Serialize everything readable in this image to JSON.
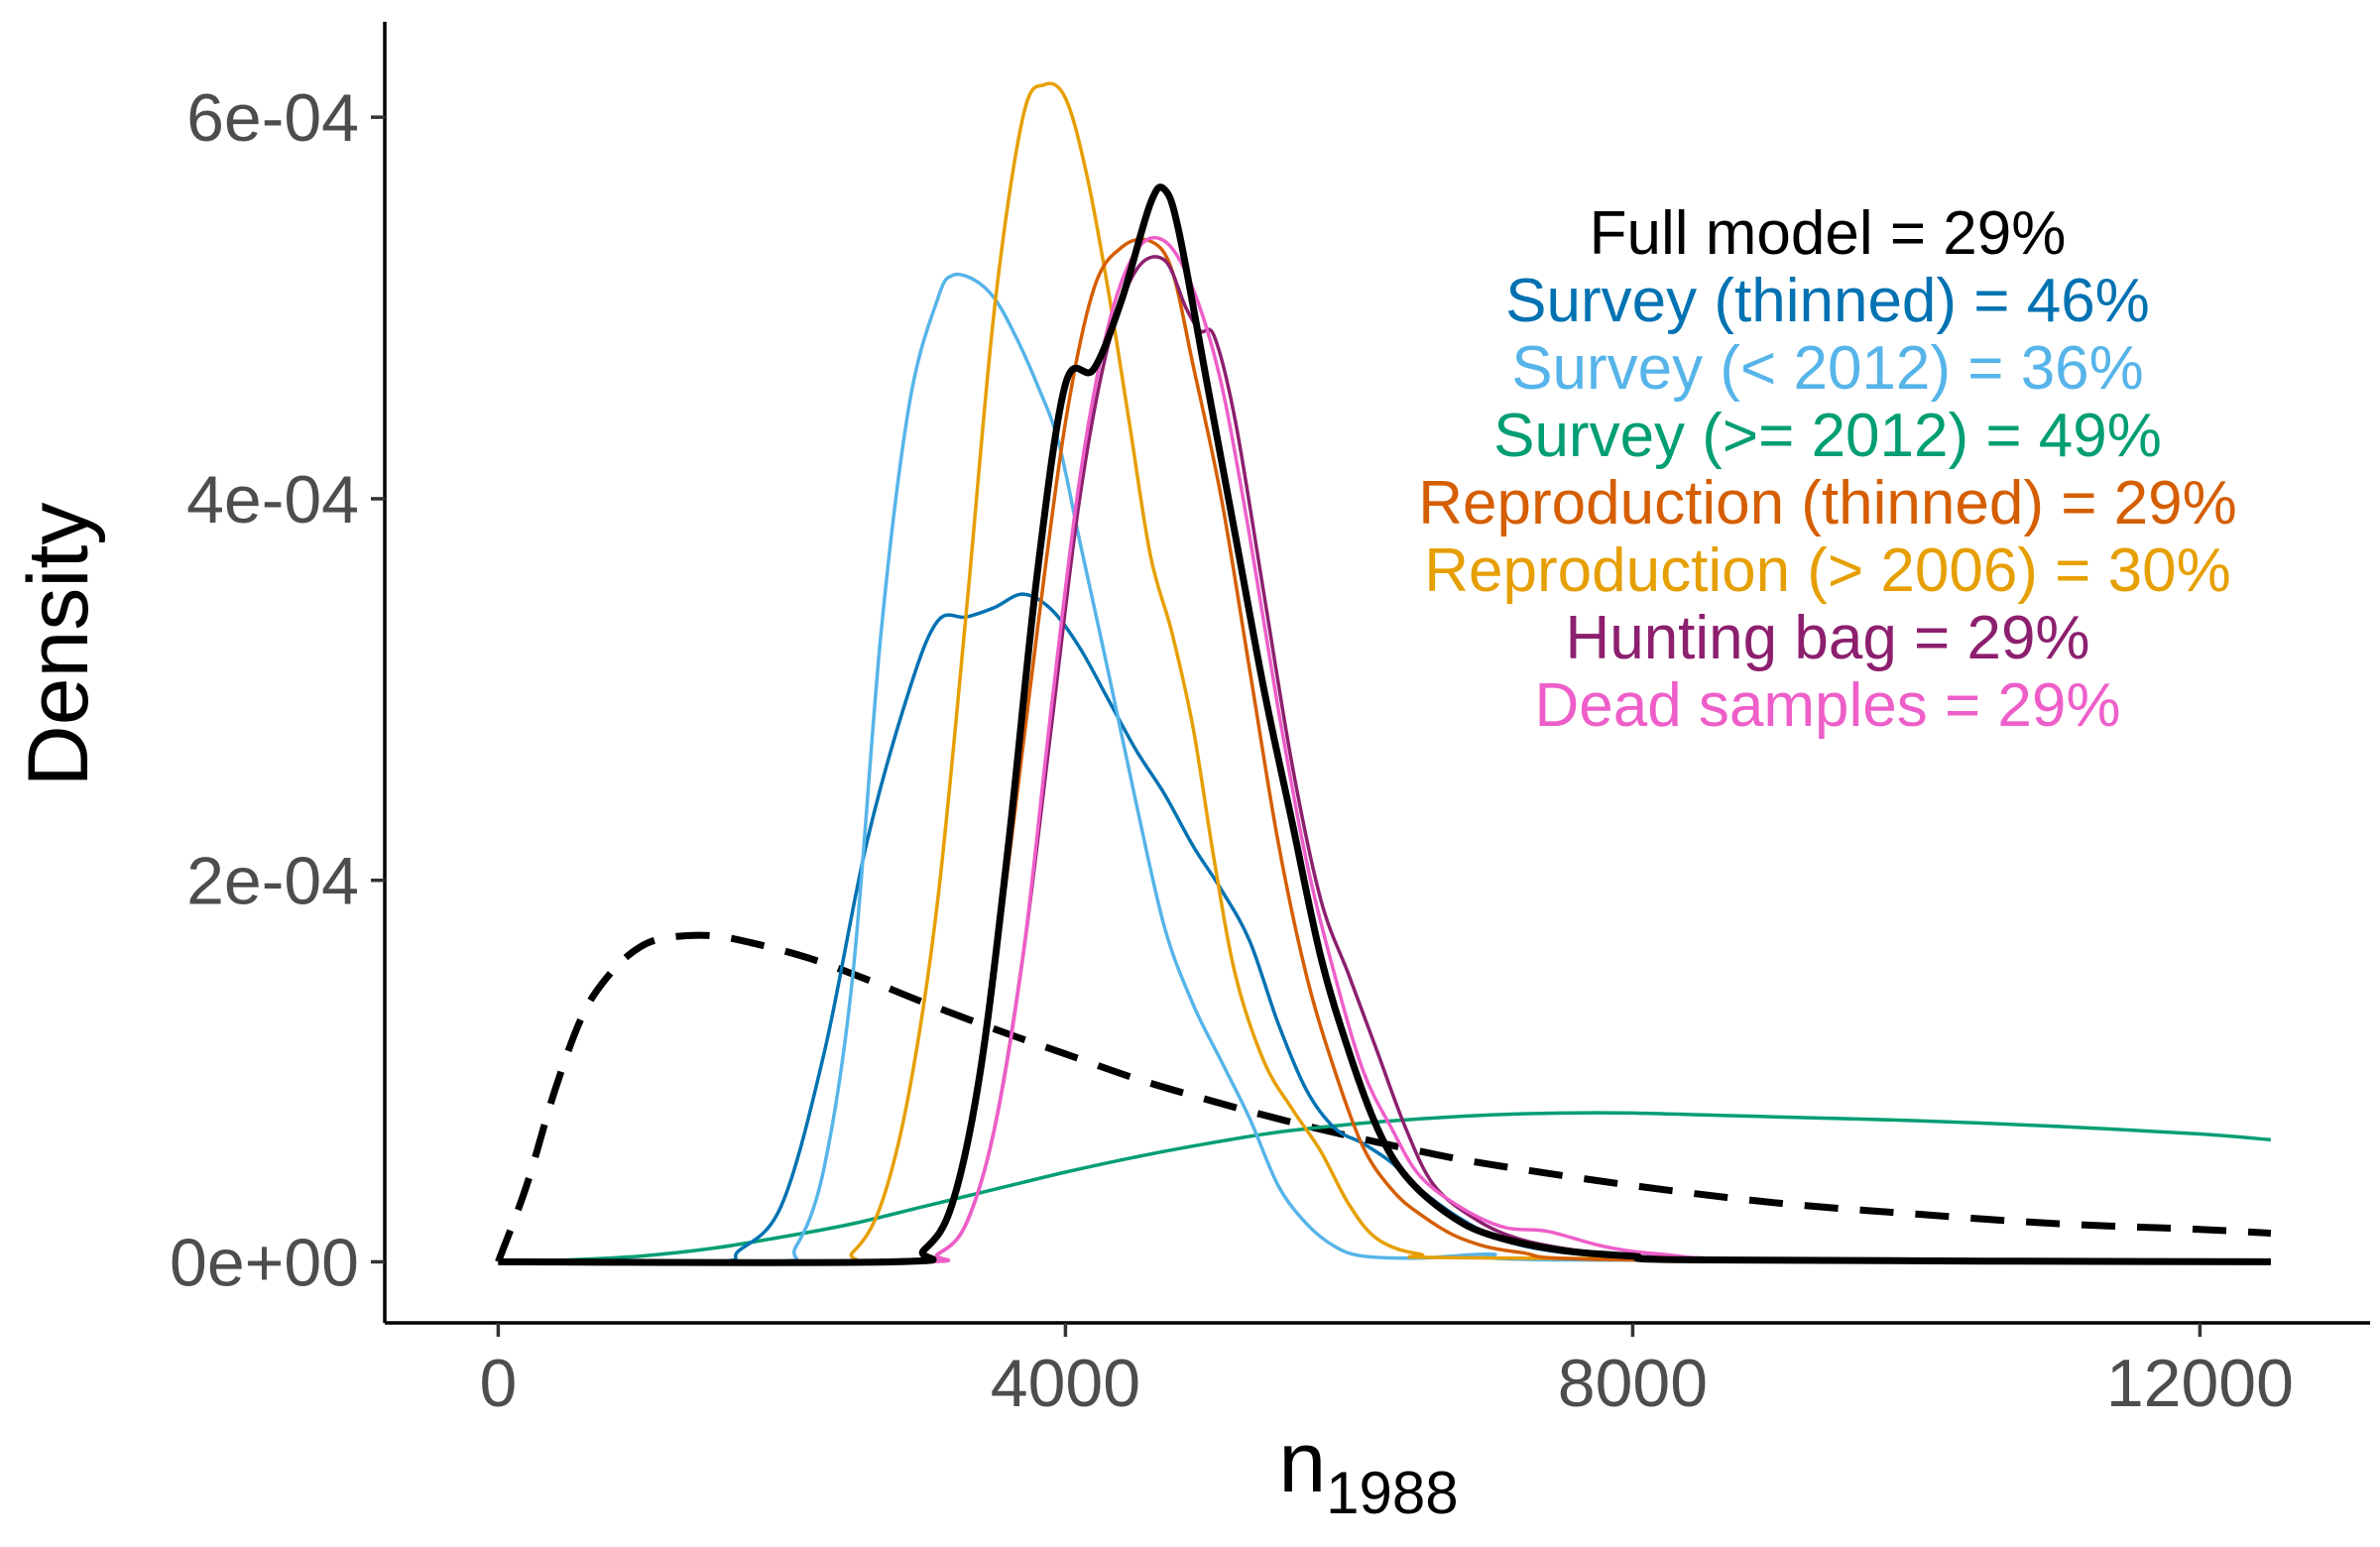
{
  "chart_data": {
    "type": "line",
    "title": "",
    "xlabel": "n",
    "xlabel_subscript": "1988",
    "ylabel": "Density",
    "xlim": [
      -800,
      13200
    ],
    "ylim": [
      -3.2e-05,
      0.00065
    ],
    "x_ticks": [
      {
        "value": 0,
        "label": "0"
      },
      {
        "value": 4000,
        "label": "4000"
      },
      {
        "value": 8000,
        "label": "8000"
      },
      {
        "value": 12000,
        "label": "12000"
      }
    ],
    "y_ticks": [
      {
        "value": 0,
        "label": "0e+00"
      },
      {
        "value": 0.0002,
        "label": "2e-04"
      },
      {
        "value": 0.0004,
        "label": "4e-04"
      },
      {
        "value": 0.0006,
        "label": "6e-04"
      }
    ],
    "grid": false,
    "legend_placement": "top-right",
    "annotations": [
      {
        "text": "Full model = 29%",
        "color": "#000000"
      },
      {
        "text": "Survey (thinned) = 46%",
        "color": "#0072B2"
      },
      {
        "text": "Survey (< 2012) = 36%",
        "color": "#56B4E9"
      },
      {
        "text": "Survey (>= 2012) = 49%",
        "color": "#009E73"
      },
      {
        "text": "Reproduction (thinned) = 29%",
        "color": "#D55E00"
      },
      {
        "text": "Reproduction (> 2006) = 30%",
        "color": "#E69F00"
      },
      {
        "text": "Hunting bag = 29%",
        "color": "#8C1F6E"
      },
      {
        "text": "Dead samples = 29%",
        "color": "#EE5EC9"
      }
    ],
    "series": [
      {
        "color": "#000000",
        "dash": true,
        "width": 7,
        "points": [
          [
            0,
            0
          ],
          [
            200,
            4e-05
          ],
          [
            400,
            9e-05
          ],
          [
            600,
            0.00013
          ],
          [
            800,
            0.000152
          ],
          [
            1000,
            0.000165
          ],
          [
            1200,
            0.00017
          ],
          [
            1500,
            0.000171
          ],
          [
            1800,
            0.000167
          ],
          [
            2200,
            0.000159
          ],
          [
            2600,
            0.000148
          ],
          [
            3000,
            0.000136
          ],
          [
            3500,
            0.000122
          ],
          [
            4000,
            0.000109
          ],
          [
            4500,
            9.6e-05
          ],
          [
            5000,
            8.5e-05
          ],
          [
            5500,
            7.5e-05
          ],
          [
            6000,
            6.6e-05
          ],
          [
            6500,
            5.8e-05
          ],
          [
            7000,
            5.1e-05
          ],
          [
            8000,
            4e-05
          ],
          [
            9000,
            3.1e-05
          ],
          [
            10000,
            2.5e-05
          ],
          [
            11000,
            2e-05
          ],
          [
            12000,
            1.7e-05
          ],
          [
            12500,
            1.5e-05
          ]
        ]
      },
      {
        "color": "#009E73",
        "width": 3.5,
        "points": [
          [
            0,
            0
          ],
          [
            500,
            1e-06
          ],
          [
            1000,
            3e-06
          ],
          [
            1500,
            7e-06
          ],
          [
            2000,
            1.3e-05
          ],
          [
            2500,
            2e-05
          ],
          [
            3000,
            2.9e-05
          ],
          [
            3500,
            3.8e-05
          ],
          [
            4000,
            4.7e-05
          ],
          [
            4500,
            5.5e-05
          ],
          [
            5000,
            6.2e-05
          ],
          [
            5500,
            6.8e-05
          ],
          [
            6000,
            7.2e-05
          ],
          [
            6500,
            7.5e-05
          ],
          [
            7000,
            7.7e-05
          ],
          [
            7500,
            7.8e-05
          ],
          [
            8000,
            7.8e-05
          ],
          [
            8500,
            7.7e-05
          ],
          [
            9000,
            7.6e-05
          ],
          [
            10000,
            7.4e-05
          ],
          [
            11000,
            7.1e-05
          ],
          [
            12000,
            6.7e-05
          ],
          [
            12500,
            6.4e-05
          ]
        ]
      },
      {
        "color": "#0072B2",
        "width": 3.5,
        "points": [
          [
            0,
            0
          ],
          [
            1500,
            0
          ],
          [
            1700,
            6e-06
          ],
          [
            2000,
            3e-05
          ],
          [
            2300,
            0.00011
          ],
          [
            2600,
            0.00022
          ],
          [
            2900,
            0.0003
          ],
          [
            3100,
            0.000336
          ],
          [
            3300,
            0.000338
          ],
          [
            3500,
            0.000343
          ],
          [
            3700,
            0.00035
          ],
          [
            3900,
            0.000342
          ],
          [
            4100,
            0.000322
          ],
          [
            4300,
            0.000295
          ],
          [
            4500,
            0.000268
          ],
          [
            4700,
            0.000245
          ],
          [
            4900,
            0.000218
          ],
          [
            5100,
            0.000195
          ],
          [
            5300,
            0.000168
          ],
          [
            5500,
            0.000125
          ],
          [
            5700,
            9e-05
          ],
          [
            5900,
            7e-05
          ],
          [
            6100,
            6.2e-05
          ],
          [
            6300,
            5.2e-05
          ],
          [
            6500,
            3.8e-05
          ],
          [
            6800,
            2.2e-05
          ],
          [
            7100,
            1.1e-05
          ],
          [
            7500,
            5e-06
          ],
          [
            8000,
            3e-06
          ],
          [
            9000,
            1e-06
          ],
          [
            12500,
            0
          ]
        ]
      },
      {
        "color": "#56B4E9",
        "width": 3.5,
        "points": [
          [
            0,
            0
          ],
          [
            1900,
            0
          ],
          [
            2100,
            8e-06
          ],
          [
            2300,
            5e-05
          ],
          [
            2500,
            0.00015
          ],
          [
            2700,
            0.00033
          ],
          [
            2900,
            0.00045
          ],
          [
            3100,
            0.000505
          ],
          [
            3200,
            0.000517
          ],
          [
            3350,
            0.000515
          ],
          [
            3500,
            0.000505
          ],
          [
            3650,
            0.000485
          ],
          [
            3800,
            0.00046
          ],
          [
            3950,
            0.00043
          ],
          [
            4100,
            0.000378
          ],
          [
            4300,
            0.00031
          ],
          [
            4500,
            0.00024
          ],
          [
            4700,
            0.000175
          ],
          [
            4900,
            0.000135
          ],
          [
            5100,
            0.000105
          ],
          [
            5300,
            7.5e-05
          ],
          [
            5500,
            4e-05
          ],
          [
            5700,
            2e-05
          ],
          [
            5900,
            8e-06
          ],
          [
            6100,
            3e-06
          ],
          [
            6500,
            2e-06
          ],
          [
            7000,
            4e-06
          ],
          [
            7500,
            1e-06
          ],
          [
            12500,
            0
          ]
        ]
      },
      {
        "color": "#E69F00",
        "width": 3.5,
        "points": [
          [
            0,
            0
          ],
          [
            2300,
            0
          ],
          [
            2500,
            5e-06
          ],
          [
            2700,
            3e-05
          ],
          [
            2900,
            9e-05
          ],
          [
            3100,
            0.00019
          ],
          [
            3300,
            0.00034
          ],
          [
            3500,
            0.0005
          ],
          [
            3700,
            0.0006
          ],
          [
            3850,
            0.000617
          ],
          [
            4000,
            0.00061
          ],
          [
            4150,
            0.00057
          ],
          [
            4300,
            0.00051
          ],
          [
            4450,
            0.00044
          ],
          [
            4600,
            0.00037
          ],
          [
            4750,
            0.00033
          ],
          [
            4900,
            0.00028
          ],
          [
            5050,
            0.00021
          ],
          [
            5200,
            0.00015
          ],
          [
            5400,
            0.000105
          ],
          [
            5600,
            8e-05
          ],
          [
            5800,
            5.8e-05
          ],
          [
            6000,
            3e-05
          ],
          [
            6200,
            1.2e-05
          ],
          [
            6500,
            4e-06
          ],
          [
            7000,
            2e-06
          ],
          [
            12500,
            0
          ]
        ]
      },
      {
        "color": "#D55E00",
        "width": 3.5,
        "points": [
          [
            0,
            0
          ],
          [
            2800,
            0
          ],
          [
            3000,
            6e-06
          ],
          [
            3200,
            3e-05
          ],
          [
            3400,
            0.0001
          ],
          [
            3600,
            0.00021
          ],
          [
            3800,
            0.00033
          ],
          [
            4000,
            0.00044
          ],
          [
            4200,
            0.00051
          ],
          [
            4400,
            0.000532
          ],
          [
            4600,
            0.000535
          ],
          [
            4750,
            0.00052
          ],
          [
            4900,
            0.00047
          ],
          [
            5100,
            0.0004
          ],
          [
            5300,
            0.00031
          ],
          [
            5500,
            0.00022
          ],
          [
            5700,
            0.00015
          ],
          [
            5900,
            0.0001
          ],
          [
            6100,
            6e-05
          ],
          [
            6300,
            3.8e-05
          ],
          [
            6500,
            2.5e-05
          ],
          [
            6800,
            1.2e-05
          ],
          [
            7200,
            5e-06
          ],
          [
            8000,
            1e-06
          ],
          [
            12500,
            0
          ]
        ]
      },
      {
        "color": "#8C1F6E",
        "width": 3.5,
        "points": [
          [
            0,
            0
          ],
          [
            2900,
            0
          ],
          [
            3100,
            4e-06
          ],
          [
            3300,
            2e-05
          ],
          [
            3500,
            7e-05
          ],
          [
            3700,
            0.00016
          ],
          [
            3900,
            0.00028
          ],
          [
            4100,
            0.0004
          ],
          [
            4300,
            0.00048
          ],
          [
            4500,
            0.00052
          ],
          [
            4700,
            0.000525
          ],
          [
            4850,
            0.0005
          ],
          [
            4950,
            0.000488
          ],
          [
            5050,
            0.000485
          ],
          [
            5200,
            0.00044
          ],
          [
            5400,
            0.00035
          ],
          [
            5600,
            0.00026
          ],
          [
            5800,
            0.00019
          ],
          [
            6000,
            0.00015
          ],
          [
            6200,
            0.00011
          ],
          [
            6400,
            7e-05
          ],
          [
            6600,
            4e-05
          ],
          [
            6900,
            2.2e-05
          ],
          [
            7200,
            1.2e-05
          ],
          [
            7600,
            6e-06
          ],
          [
            8000,
            3e-06
          ],
          [
            8500,
            2e-06
          ],
          [
            9000,
            1e-06
          ],
          [
            12500,
            0
          ]
        ]
      },
      {
        "color": "#EE5EC9",
        "width": 3.5,
        "points": [
          [
            0,
            0
          ],
          [
            2900,
            0
          ],
          [
            3100,
            4e-06
          ],
          [
            3300,
            2e-05
          ],
          [
            3500,
            7e-05
          ],
          [
            3700,
            0.00016
          ],
          [
            3900,
            0.00029
          ],
          [
            4100,
            0.00041
          ],
          [
            4300,
            0.00049
          ],
          [
            4500,
            0.00053
          ],
          [
            4700,
            0.000535
          ],
          [
            4900,
            0.00051
          ],
          [
            5100,
            0.00046
          ],
          [
            5300,
            0.00038
          ],
          [
            5500,
            0.00029
          ],
          [
            5700,
            0.00021
          ],
          [
            5900,
            0.00015
          ],
          [
            6100,
            0.0001
          ],
          [
            6300,
            7e-05
          ],
          [
            6500,
            4.5e-05
          ],
          [
            6800,
            2.8e-05
          ],
          [
            7100,
            1.8e-05
          ],
          [
            7400,
            1.6e-05
          ],
          [
            7800,
            8e-06
          ],
          [
            8200,
            4e-06
          ],
          [
            9000,
            1e-06
          ],
          [
            12500,
            0
          ]
        ]
      },
      {
        "color": "#000000",
        "width": 7,
        "points": [
          [
            0,
            0
          ],
          [
            2800,
            0
          ],
          [
            3000,
            6e-06
          ],
          [
            3200,
            3e-05
          ],
          [
            3400,
            0.0001
          ],
          [
            3600,
            0.00022
          ],
          [
            3800,
            0.00036
          ],
          [
            4000,
            0.00046
          ],
          [
            4200,
            0.000468
          ],
          [
            4400,
            0.000505
          ],
          [
            4600,
            0.000555
          ],
          [
            4700,
            0.000562
          ],
          [
            4800,
            0.00054
          ],
          [
            5000,
            0.00046
          ],
          [
            5200,
            0.00038
          ],
          [
            5400,
            0.0003
          ],
          [
            5600,
            0.00023
          ],
          [
            5800,
            0.00016
          ],
          [
            6000,
            0.00011
          ],
          [
            6200,
            7e-05
          ],
          [
            6400,
            4.5e-05
          ],
          [
            6700,
            2.5e-05
          ],
          [
            7000,
            1.4e-05
          ],
          [
            7500,
            6e-06
          ],
          [
            8000,
            3e-06
          ],
          [
            8500,
            1e-06
          ],
          [
            12500,
            0
          ]
        ]
      }
    ]
  }
}
